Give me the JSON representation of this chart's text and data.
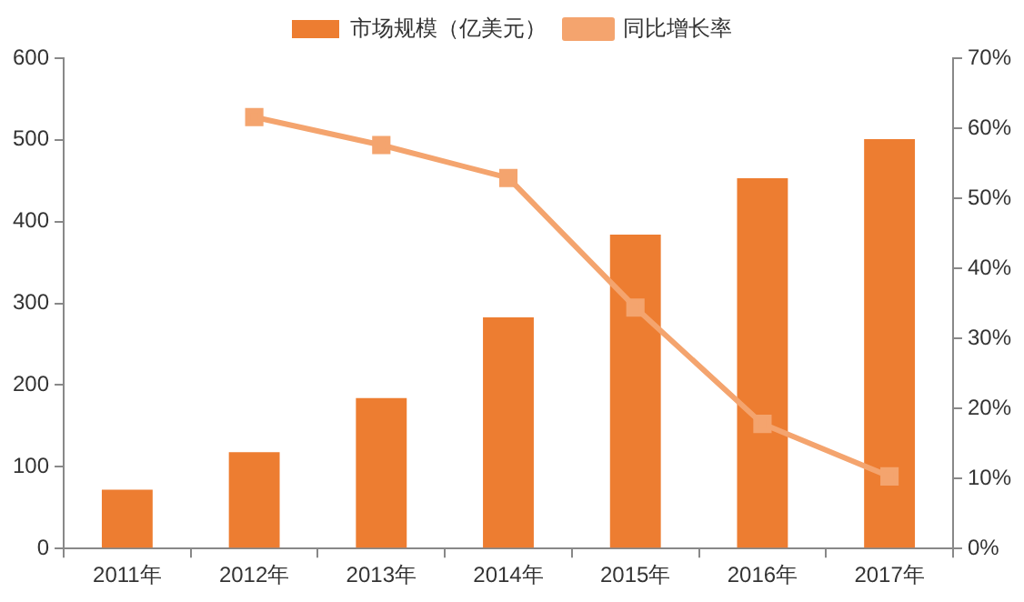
{
  "chart_data": {
    "type": "bar",
    "categories": [
      "2011年",
      "2012年",
      "2013年",
      "2014年",
      "2015年",
      "2016年",
      "2017年"
    ],
    "series": [
      {
        "name": "市场规模（亿美元）",
        "color": "#ed7d31",
        "values": [
          72,
          118,
          184,
          283,
          384,
          453,
          501
        ]
      },
      {
        "name": "同比增长率",
        "type": "line",
        "axis": "y2",
        "color": "#f4a46e",
        "marker": "square",
        "values": [
          null,
          61.6,
          57.6,
          52.9,
          34.4,
          17.8,
          10.3
        ]
      }
    ],
    "ylim": [
      0,
      600
    ],
    "yticks": [
      0,
      100,
      200,
      300,
      400,
      500,
      600
    ],
    "y2lim": [
      0,
      70
    ],
    "y2ticks": [
      {
        "value": 0,
        "label": "0%"
      },
      {
        "value": 10,
        "label": "10%"
      },
      {
        "value": 20,
        "label": "20%"
      },
      {
        "value": 30,
        "label": "30%"
      },
      {
        "value": 40,
        "label": "40%"
      },
      {
        "value": 50,
        "label": "50%"
      },
      {
        "value": 60,
        "label": "60%"
      },
      {
        "value": 70,
        "label": "70%"
      }
    ],
    "grid": false,
    "legend": "top"
  }
}
